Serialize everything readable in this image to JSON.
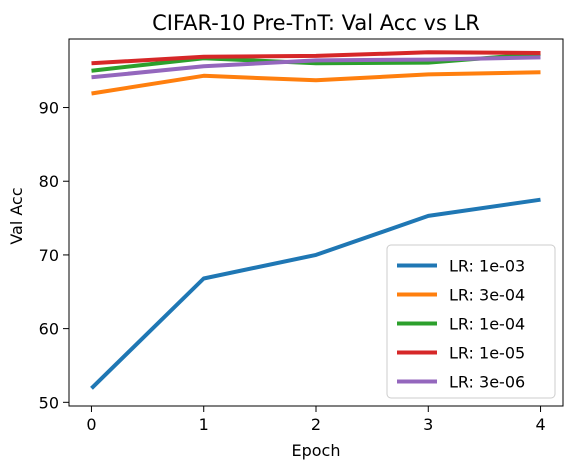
{
  "chart_data": {
    "type": "line",
    "title": "CIFAR-10 Pre-TnT: Val Acc vs LR",
    "xlabel": "Epoch",
    "ylabel": "Val Acc",
    "x": [
      0,
      1,
      2,
      3,
      4
    ],
    "xlim": [
      -0.2,
      4.2
    ],
    "ylim": [
      49.5,
      99.3
    ],
    "xticks": [
      0,
      1,
      2,
      3,
      4
    ],
    "yticks": [
      50,
      60,
      70,
      80,
      90
    ],
    "grid": false,
    "legend": "lower-right",
    "series": [
      {
        "name": "LR: 1e-03",
        "color": "#1f77b4",
        "values": [
          51.9,
          66.8,
          70.0,
          75.3,
          77.5
        ]
      },
      {
        "name": "LR: 3e-04",
        "color": "#ff7f0e",
        "values": [
          91.9,
          94.3,
          93.7,
          94.5,
          94.8
        ]
      },
      {
        "name": "LR: 1e-04",
        "color": "#2ca02c",
        "values": [
          95.0,
          96.7,
          96.0,
          96.1,
          97.3
        ]
      },
      {
        "name": "LR: 1e-05",
        "color": "#d62728",
        "values": [
          96.0,
          96.9,
          97.0,
          97.5,
          97.4
        ]
      },
      {
        "name": "LR: 3e-06",
        "color": "#9467bd",
        "values": [
          94.1,
          95.6,
          96.4,
          96.5,
          96.8
        ]
      }
    ]
  }
}
